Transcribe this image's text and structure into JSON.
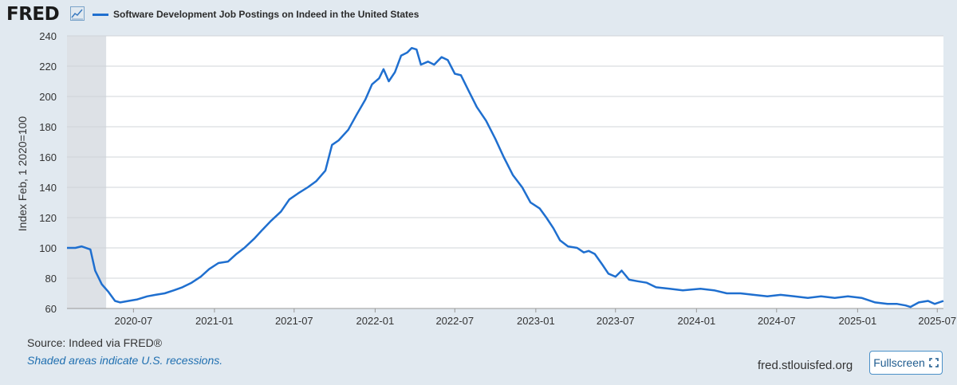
{
  "header": {
    "logo_text": "FRED",
    "logo_icon": "line-chart-icon"
  },
  "chart_data": {
    "type": "line",
    "title": "Software Development Job Postings on Indeed in the United States",
    "ylabel": "Index Feb, 1 2020=100",
    "xlabel": "",
    "ylim": [
      60,
      240
    ],
    "yticks": [
      60,
      80,
      100,
      120,
      140,
      160,
      180,
      200,
      220,
      240
    ],
    "xlim": [
      "2020-02-01",
      "2025-07-15"
    ],
    "xticks": [
      "2020-07",
      "2021-01",
      "2021-07",
      "2022-01",
      "2022-07",
      "2023-01",
      "2023-07",
      "2024-01",
      "2024-07",
      "2025-01",
      "2025-07"
    ],
    "grid": "horizontal",
    "legend_position": "top-left",
    "line_color": "#1f6fcf",
    "recessions": [
      {
        "start": "2020-02-01",
        "end": "2020-04-30"
      }
    ],
    "recession_color": "#dde1e6",
    "series": [
      {
        "name": "Software Development Job Postings on Indeed in the United States",
        "points": [
          [
            "2020-02-01",
            100
          ],
          [
            "2020-02-20",
            100
          ],
          [
            "2020-03-05",
            101
          ],
          [
            "2020-03-25",
            99
          ],
          [
            "2020-04-05",
            85
          ],
          [
            "2020-04-20",
            76
          ],
          [
            "2020-05-05",
            71
          ],
          [
            "2020-05-20",
            65
          ],
          [
            "2020-06-01",
            64
          ],
          [
            "2020-06-20",
            65
          ],
          [
            "2020-07-10",
            66
          ],
          [
            "2020-08-01",
            68
          ],
          [
            "2020-08-20",
            69
          ],
          [
            "2020-09-10",
            70
          ],
          [
            "2020-10-01",
            72
          ],
          [
            "2020-10-20",
            74
          ],
          [
            "2020-11-10",
            77
          ],
          [
            "2020-12-01",
            81
          ],
          [
            "2020-12-20",
            86
          ],
          [
            "2021-01-10",
            90
          ],
          [
            "2021-02-01",
            91
          ],
          [
            "2021-02-20",
            96
          ],
          [
            "2021-03-10",
            100
          ],
          [
            "2021-04-01",
            106
          ],
          [
            "2021-04-20",
            112
          ],
          [
            "2021-05-10",
            118
          ],
          [
            "2021-06-01",
            124
          ],
          [
            "2021-06-20",
            132
          ],
          [
            "2021-07-10",
            136
          ],
          [
            "2021-08-01",
            140
          ],
          [
            "2021-08-20",
            144
          ],
          [
            "2021-09-10",
            151
          ],
          [
            "2021-09-25",
            168
          ],
          [
            "2021-10-10",
            171
          ],
          [
            "2021-11-01",
            178
          ],
          [
            "2021-11-20",
            188
          ],
          [
            "2021-12-10",
            198
          ],
          [
            "2021-12-25",
            208
          ],
          [
            "2022-01-10",
            212
          ],
          [
            "2022-01-20",
            218
          ],
          [
            "2022-02-01",
            210
          ],
          [
            "2022-02-15",
            216
          ],
          [
            "2022-03-01",
            227
          ],
          [
            "2022-03-15",
            229
          ],
          [
            "2022-03-25",
            232
          ],
          [
            "2022-04-05",
            231
          ],
          [
            "2022-04-15",
            221
          ],
          [
            "2022-05-01",
            223
          ],
          [
            "2022-05-15",
            221
          ],
          [
            "2022-06-01",
            226
          ],
          [
            "2022-06-15",
            224
          ],
          [
            "2022-07-01",
            215
          ],
          [
            "2022-07-15",
            214
          ],
          [
            "2022-08-01",
            204
          ],
          [
            "2022-08-20",
            193
          ],
          [
            "2022-09-10",
            184
          ],
          [
            "2022-10-01",
            172
          ],
          [
            "2022-10-20",
            160
          ],
          [
            "2022-11-10",
            148
          ],
          [
            "2022-12-01",
            140
          ],
          [
            "2022-12-20",
            130
          ],
          [
            "2023-01-10",
            126
          ],
          [
            "2023-01-25",
            120
          ],
          [
            "2023-02-10",
            113
          ],
          [
            "2023-02-25",
            105
          ],
          [
            "2023-03-15",
            101
          ],
          [
            "2023-04-05",
            100
          ],
          [
            "2023-04-20",
            97
          ],
          [
            "2023-05-01",
            98
          ],
          [
            "2023-05-15",
            96
          ],
          [
            "2023-06-01",
            89
          ],
          [
            "2023-06-15",
            83
          ],
          [
            "2023-07-01",
            81
          ],
          [
            "2023-07-15",
            85
          ],
          [
            "2023-08-01",
            79
          ],
          [
            "2023-08-20",
            78
          ],
          [
            "2023-09-10",
            77
          ],
          [
            "2023-10-01",
            74
          ],
          [
            "2023-11-01",
            73
          ],
          [
            "2023-12-01",
            72
          ],
          [
            "2024-01-10",
            73
          ],
          [
            "2024-02-10",
            72
          ],
          [
            "2024-03-10",
            70
          ],
          [
            "2024-04-10",
            70
          ],
          [
            "2024-05-10",
            69
          ],
          [
            "2024-06-10",
            68
          ],
          [
            "2024-07-10",
            69
          ],
          [
            "2024-08-10",
            68
          ],
          [
            "2024-09-10",
            67
          ],
          [
            "2024-10-10",
            68
          ],
          [
            "2024-11-10",
            67
          ],
          [
            "2024-12-10",
            68
          ],
          [
            "2025-01-10",
            67
          ],
          [
            "2025-02-10",
            64
          ],
          [
            "2025-03-10",
            63
          ],
          [
            "2025-04-01",
            63
          ],
          [
            "2025-04-20",
            62
          ],
          [
            "2025-05-01",
            61
          ],
          [
            "2025-05-20",
            64
          ],
          [
            "2025-06-10",
            65
          ],
          [
            "2025-06-25",
            63
          ],
          [
            "2025-07-15",
            65
          ]
        ]
      }
    ]
  },
  "footer": {
    "source": "Source: Indeed via FRED®",
    "recession_note": "Shaded areas indicate U.S. recessions.",
    "url": "fred.stlouisfed.org",
    "fullscreen_label": "Fullscreen"
  }
}
